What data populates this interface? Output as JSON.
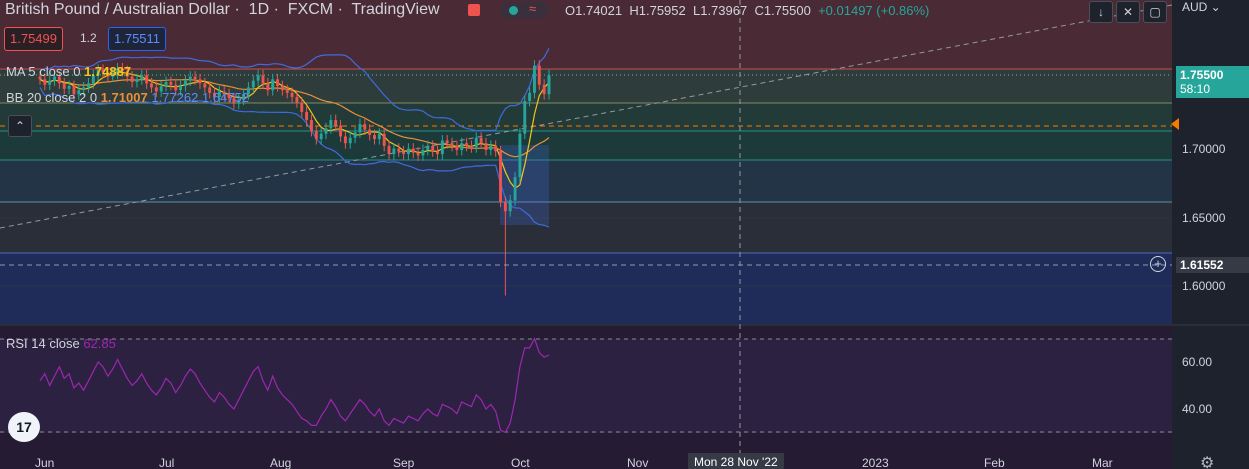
{
  "header": {
    "symbol_title": "British Pound / Australian Dollar",
    "interval": "1D",
    "exchange": "FXCM",
    "provider": "TradingView",
    "open_label": "O",
    "open_value": "1.74021",
    "high_label": "H",
    "high_value": "1.75952",
    "low_label": "L",
    "low_value": "1.73967",
    "close_label": "C",
    "close_value": "1.75500",
    "change": "+0.01497 (+0.86%)",
    "currency": "AUD"
  },
  "trade": {
    "sell_price": "1.75499",
    "spread": "1.2",
    "buy_price": "1.75511"
  },
  "indicators": {
    "ma_label": "MA 5 close 0",
    "ma_value": "1.74887",
    "bb_label": "BB 20 close 2 0",
    "bb_basis": "1.71007",
    "bb_upper": "1.77262",
    "bb_lower": "1.64752",
    "rsi_label": "RSI 14 close",
    "rsi_value": "62.85"
  },
  "price_axis": {
    "ticks": [
      "1.70000",
      "1.65000",
      "1.60000"
    ],
    "current_price": "1.75500",
    "countdown": "58:10",
    "crosshair_price": "1.61552"
  },
  "rsi_axis": {
    "ticks": [
      "60.00",
      "40.00"
    ]
  },
  "time_axis": {
    "ticks": [
      "Jun",
      "Jul",
      "Aug",
      "Sep",
      "Oct",
      "Nov",
      "2023",
      "Feb",
      "Mar"
    ],
    "crosshair_date": "Mon 28 Nov '22"
  },
  "logo": "17",
  "colors": {
    "background": "#1e222d",
    "up": "#26a69a",
    "down": "#ef5350",
    "ma": "#f5c518",
    "bb_basis": "#e9903a",
    "bb_bands": "#3f6bdf",
    "rsi": "#9c27b0",
    "price_tag": "#26a69a"
  },
  "chart_data": [
    {
      "type": "candlestick",
      "title": "British Pound / Australian Dollar, 1D, FXCM",
      "x_ticks": [
        "Jun",
        "Jul",
        "Aug",
        "Sep",
        "Oct",
        "Nov",
        "2023",
        "Feb",
        "Mar"
      ],
      "y_ticks": [
        1.7,
        1.65,
        1.6
      ],
      "ylim": [
        1.575,
        1.775
      ],
      "closes": [
        1.752,
        1.748,
        1.751,
        1.754,
        1.749,
        1.745,
        1.747,
        1.741,
        1.744,
        1.746,
        1.749,
        1.755,
        1.759,
        1.757,
        1.754,
        1.756,
        1.76,
        1.758,
        1.754,
        1.75,
        1.752,
        1.755,
        1.749,
        1.746,
        1.743,
        1.747,
        1.75,
        1.748,
        1.744,
        1.747,
        1.751,
        1.754,
        1.752,
        1.749,
        1.746,
        1.742,
        1.739,
        1.743,
        1.741,
        1.738,
        1.734,
        1.737,
        1.741,
        1.746,
        1.751,
        1.755,
        1.749,
        1.744,
        1.752,
        1.747,
        1.744,
        1.742,
        1.739,
        1.735,
        1.728,
        1.722,
        1.714,
        1.708,
        1.712,
        1.716,
        1.722,
        1.718,
        1.71,
        1.705,
        1.709,
        1.713,
        1.719,
        1.715,
        1.711,
        1.708,
        1.712,
        1.703,
        1.697,
        1.701,
        1.699,
        1.697,
        1.701,
        1.698,
        1.696,
        1.7,
        1.703,
        1.699,
        1.697,
        1.707,
        1.705,
        1.703,
        1.7,
        1.705,
        1.703,
        1.702,
        1.709,
        1.705,
        1.7,
        1.703,
        1.699,
        1.662,
        1.655,
        1.663,
        1.68,
        1.712,
        1.736,
        1.742,
        1.762,
        1.748,
        1.741,
        1.755
      ]
    },
    {
      "type": "line",
      "title": "RSI 14 close",
      "y_ticks": [
        60.0,
        40.0
      ],
      "values": [
        52,
        55,
        50,
        54,
        58,
        53,
        55,
        49,
        51,
        48,
        52,
        56,
        60,
        58,
        54,
        57,
        61,
        57,
        53,
        50,
        52,
        55,
        51,
        48,
        46,
        49,
        53,
        51,
        47,
        50,
        54,
        57,
        55,
        51,
        48,
        45,
        43,
        47,
        45,
        42,
        40,
        44,
        48,
        52,
        56,
        58,
        52,
        48,
        54,
        49,
        46,
        44,
        42,
        39,
        36,
        35,
        33,
        33,
        37,
        40,
        44,
        41,
        37,
        35,
        38,
        41,
        44,
        42,
        39,
        37,
        40,
        35,
        33,
        36,
        35,
        34,
        37,
        36,
        35,
        38,
        40,
        38,
        37,
        42,
        41,
        40,
        38,
        43,
        42,
        41,
        46,
        44,
        40,
        42,
        39,
        31,
        30,
        34,
        44,
        58,
        66,
        66,
        70,
        64,
        62,
        63
      ]
    }
  ]
}
